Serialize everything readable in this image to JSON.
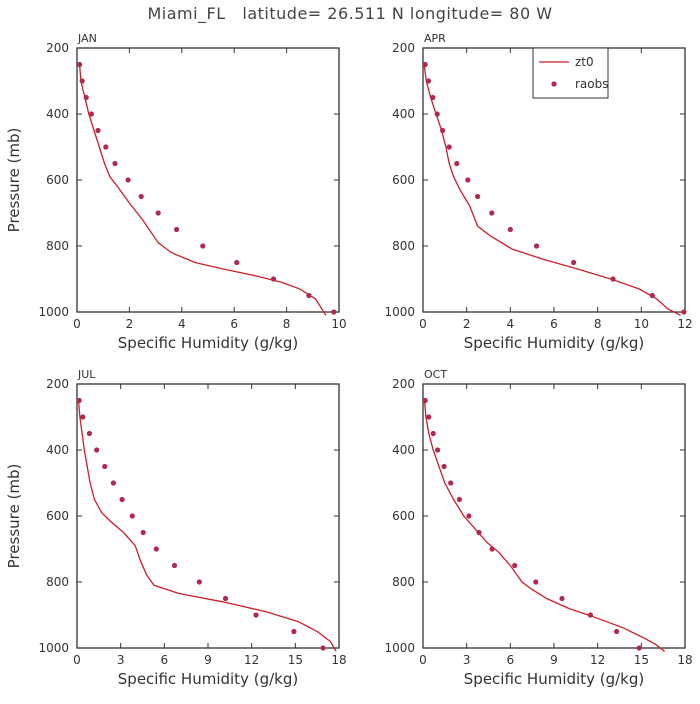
{
  "figure": {
    "title": "Miami_FL   latitude= 26.511 N longitude= 80 W",
    "colors": {
      "model": "#cc1f2a",
      "obs": "#b02a4d",
      "axis": "#333333"
    }
  },
  "chart_data": [
    {
      "type": "line",
      "panel_label": "JAN",
      "xlabel": "Specific Humidity (g/kg)",
      "ylabel": "Pressure (mb)",
      "xlim": [
        0,
        10
      ],
      "xticks": [
        0,
        2,
        4,
        6,
        8,
        10
      ],
      "ylim": [
        1000,
        200
      ],
      "yticks": [
        200,
        400,
        600,
        800,
        1000
      ],
      "legend": null,
      "series": [
        {
          "name": "zt0",
          "style": "line",
          "x": [
            0.1,
            0.15,
            0.3,
            0.45,
            0.65,
            0.85,
            1.05,
            1.25,
            1.55,
            2.0,
            2.5,
            2.75,
            3.1,
            3.6,
            4.5,
            5.6,
            6.8,
            7.8,
            8.5,
            9.1,
            9.5
          ],
          "y": [
            250,
            300,
            350,
            400,
            450,
            500,
            550,
            590,
            620,
            670,
            720,
            750,
            790,
            820,
            850,
            870,
            890,
            910,
            930,
            960,
            1010
          ]
        },
        {
          "name": "raobs",
          "style": "points",
          "x": [
            0.1,
            0.2,
            0.35,
            0.55,
            0.8,
            1.1,
            1.45,
            1.95,
            2.45,
            3.1,
            3.8,
            4.8,
            6.1,
            7.5,
            8.85,
            9.8
          ],
          "y": [
            250,
            300,
            350,
            400,
            450,
            500,
            550,
            600,
            650,
            700,
            750,
            800,
            850,
            900,
            950,
            1000
          ]
        }
      ]
    },
    {
      "type": "line",
      "panel_label": "APR",
      "xlabel": "Specific Humidity (g/kg)",
      "ylabel": "",
      "xlim": [
        0,
        12
      ],
      "xticks": [
        0,
        2,
        4,
        6,
        8,
        10,
        12
      ],
      "ylim": [
        1000,
        200
      ],
      "yticks": [
        200,
        400,
        600,
        800,
        1000
      ],
      "legend": "top-right",
      "series": [
        {
          "name": "zt0",
          "style": "line",
          "x": [
            0.05,
            0.15,
            0.35,
            0.6,
            0.85,
            1.05,
            1.2,
            1.4,
            1.7,
            2.15,
            2.5,
            3.1,
            4.1,
            5.5,
            7.1,
            8.6,
            9.9,
            10.7,
            11.2,
            11.8
          ],
          "y": [
            250,
            300,
            350,
            400,
            450,
            500,
            550,
            590,
            630,
            680,
            740,
            770,
            810,
            840,
            870,
            900,
            930,
            960,
            990,
            1010
          ]
        },
        {
          "name": "raobs",
          "style": "points",
          "x": [
            0.1,
            0.25,
            0.45,
            0.65,
            0.9,
            1.2,
            1.55,
            2.05,
            2.5,
            3.15,
            4.0,
            5.2,
            6.9,
            8.7,
            10.5,
            11.95
          ],
          "y": [
            250,
            300,
            350,
            400,
            450,
            500,
            550,
            600,
            650,
            700,
            750,
            800,
            850,
            900,
            950,
            1000
          ]
        }
      ]
    },
    {
      "type": "line",
      "panel_label": "JUL",
      "xlabel": "Specific Humidity (g/kg)",
      "ylabel": "Pressure (mb)",
      "xlim": [
        0,
        18
      ],
      "xticks": [
        0,
        3,
        6,
        9,
        12,
        15,
        18
      ],
      "ylim": [
        1000,
        200
      ],
      "yticks": [
        200,
        400,
        600,
        800,
        1000
      ],
      "legend": null,
      "series": [
        {
          "name": "zt0",
          "style": "line",
          "x": [
            0.1,
            0.2,
            0.35,
            0.5,
            0.7,
            0.9,
            1.2,
            1.7,
            2.4,
            3.2,
            4.0,
            4.4,
            4.8,
            5.3,
            7.0,
            10.0,
            13.0,
            15.2,
            16.5,
            17.4,
            17.8
          ],
          "y": [
            250,
            300,
            350,
            400,
            450,
            500,
            550,
            590,
            620,
            650,
            690,
            740,
            780,
            810,
            835,
            860,
            890,
            920,
            950,
            980,
            1010
          ]
        },
        {
          "name": "raobs",
          "style": "points",
          "x": [
            0.15,
            0.4,
            0.85,
            1.35,
            1.9,
            2.5,
            3.1,
            3.8,
            4.55,
            5.45,
            6.7,
            8.4,
            10.2,
            12.3,
            14.9,
            16.9
          ],
          "y": [
            250,
            300,
            350,
            400,
            450,
            500,
            550,
            600,
            650,
            700,
            750,
            800,
            850,
            900,
            950,
            1000
          ]
        }
      ]
    },
    {
      "type": "line",
      "panel_label": "OCT",
      "xlabel": "Specific Humidity (g/kg)",
      "ylabel": "",
      "xlim": [
        0,
        18
      ],
      "xticks": [
        0,
        3,
        6,
        9,
        12,
        15,
        18
      ],
      "ylim": [
        1000,
        200
      ],
      "yticks": [
        200,
        400,
        600,
        800,
        1000
      ],
      "legend": null,
      "series": [
        {
          "name": "zt0",
          "style": "line",
          "x": [
            0.1,
            0.2,
            0.4,
            0.7,
            1.1,
            1.5,
            2.1,
            2.8,
            3.6,
            4.4,
            5.2,
            6.0,
            6.8,
            7.4,
            8.5,
            10.0,
            12.0,
            13.8,
            15.2,
            16.0,
            16.6
          ],
          "y": [
            250,
            300,
            350,
            400,
            450,
            500,
            550,
            600,
            640,
            680,
            710,
            750,
            800,
            820,
            850,
            880,
            910,
            940,
            970,
            990,
            1010
          ]
        },
        {
          "name": "raobs",
          "style": "points",
          "x": [
            0.15,
            0.4,
            0.7,
            1.0,
            1.45,
            1.9,
            2.5,
            3.15,
            3.85,
            4.75,
            6.3,
            7.75,
            9.55,
            11.5,
            13.3,
            14.85
          ],
          "y": [
            250,
            300,
            350,
            400,
            450,
            500,
            550,
            600,
            650,
            700,
            750,
            800,
            850,
            900,
            950,
            1000
          ]
        }
      ]
    }
  ]
}
